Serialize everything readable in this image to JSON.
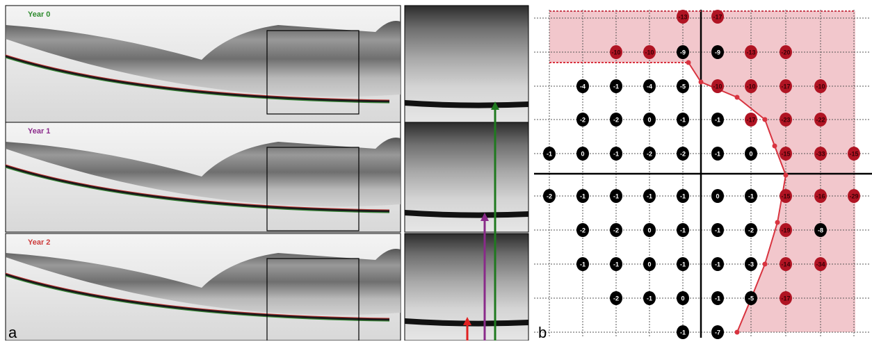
{
  "panel_a": {
    "label": "a",
    "rows": [
      {
        "year_label": "Year 0",
        "label_color": "#2e8b2e"
      },
      {
        "year_label": "Year 1",
        "label_color": "#8b2a8b"
      },
      {
        "year_label": "Year 2",
        "label_color": "#cc3b3b"
      }
    ],
    "arrows": [
      {
        "color": "#1f7a1f"
      },
      {
        "color": "#8a2a8a"
      },
      {
        "color": "#e02020"
      }
    ]
  },
  "panel_b": {
    "label": "b",
    "shade_color": "#f2c7cc",
    "marker_color": "#d8333f",
    "grid_rows": [
      [
        "",
        "",
        "",
        "",
        "-13",
        "-17",
        "",
        "",
        "",
        ""
      ],
      [
        "",
        "",
        "-10",
        "-10",
        "-9",
        "-9",
        "-13",
        "-20",
        "",
        ""
      ],
      [
        "",
        "-4",
        "-1",
        "-4",
        "-5",
        "-10",
        "-10",
        "-17",
        "-10",
        ""
      ],
      [
        "",
        "-2",
        "-2",
        "0",
        "-1",
        "-1",
        "-17",
        "-23",
        "-22",
        ""
      ],
      [
        "-1",
        "0",
        "-1",
        "-2",
        "-2",
        "-1",
        "0",
        "-15",
        "-33",
        "-15"
      ],
      [
        "-2",
        "-1",
        "-1",
        "-1",
        "-1",
        "0",
        "-1",
        "-15",
        "-16",
        "-29"
      ],
      [
        "",
        "-2",
        "-2",
        "0",
        "-1",
        "-1",
        "-2",
        "-19",
        "-8",
        ""
      ],
      [
        "",
        "-1",
        "-1",
        "0",
        "-1",
        "-1",
        "-3",
        "-14",
        "-34",
        ""
      ],
      [
        "",
        "",
        "-2",
        "-1",
        "0",
        "-1",
        "-5",
        "-17",
        "",
        ""
      ],
      [
        "",
        "",
        "",
        "",
        "-1",
        "-7",
        "",
        "",
        "",
        ""
      ]
    ],
    "red_cells": [
      [
        0,
        4
      ],
      [
        0,
        5
      ],
      [
        1,
        2
      ],
      [
        1,
        3
      ],
      [
        1,
        6
      ],
      [
        1,
        7
      ],
      [
        2,
        5
      ],
      [
        2,
        6
      ],
      [
        2,
        7
      ],
      [
        2,
        8
      ],
      [
        3,
        6
      ],
      [
        3,
        7
      ],
      [
        3,
        8
      ],
      [
        4,
        7
      ],
      [
        4,
        8
      ],
      [
        4,
        9
      ],
      [
        5,
        7
      ],
      [
        5,
        8
      ],
      [
        5,
        9
      ],
      [
        6,
        7
      ],
      [
        7,
        7
      ],
      [
        7,
        8
      ],
      [
        8,
        7
      ]
    ]
  }
}
